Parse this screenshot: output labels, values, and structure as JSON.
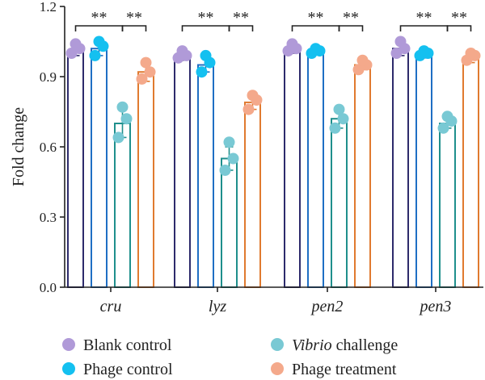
{
  "chart_data": {
    "type": "bar",
    "ylabel": "Fold change",
    "ylim": [
      0,
      1.2
    ],
    "yticks": [
      0.0,
      0.3,
      0.6,
      0.9,
      1.2
    ],
    "categories": [
      "cru",
      "lyz",
      "pen2",
      "pen3"
    ],
    "error_bars": true,
    "series": [
      {
        "name": "Blank control",
        "name_italic": "",
        "name_rest": "Blank control",
        "bar_color": "#2d2a6b",
        "dot_color": "#b09ad8",
        "values": [
          1.01,
          0.99,
          1.02,
          1.02
        ],
        "errors": [
          0.02,
          0.02,
          0.02,
          0.03
        ],
        "points": [
          [
            1.0,
            1.02,
            1.04
          ],
          [
            0.98,
            0.99,
            1.01
          ],
          [
            1.01,
            1.02,
            1.04
          ],
          [
            1.0,
            1.02,
            1.05
          ]
        ]
      },
      {
        "name": "Phage control",
        "name_italic": "",
        "name_rest": "Phage control",
        "bar_color": "#1f6fc4",
        "dot_color": "#14c0f0",
        "values": [
          1.02,
          0.95,
          1.01,
          1.0
        ],
        "errors": [
          0.03,
          0.03,
          0.01,
          0.02
        ],
        "points": [
          [
            0.99,
            1.03,
            1.05
          ],
          [
            0.92,
            0.96,
            0.99
          ],
          [
            1.0,
            1.01,
            1.02
          ],
          [
            0.99,
            1.0,
            1.01
          ]
        ]
      },
      {
        "name": "Vibrio challenge",
        "name_italic": "Vibrio",
        "name_rest": " challenge",
        "bar_color": "#1f8f8c",
        "dot_color": "#79c9d4",
        "values": [
          0.7,
          0.55,
          0.72,
          0.7
        ],
        "errors": [
          0.06,
          0.05,
          0.04,
          0.02
        ],
        "points": [
          [
            0.64,
            0.72,
            0.77
          ],
          [
            0.5,
            0.55,
            0.62
          ],
          [
            0.68,
            0.72,
            0.76
          ],
          [
            0.68,
            0.71,
            0.73
          ]
        ]
      },
      {
        "name": "Phage treatment",
        "name_italic": "",
        "name_rest": "Phage treatment",
        "bar_color": "#e07a2f",
        "dot_color": "#f4a98b",
        "values": [
          0.92,
          0.79,
          0.95,
          0.98
        ],
        "errors": [
          0.04,
          0.03,
          0.02,
          0.02
        ],
        "points": [
          [
            0.89,
            0.92,
            0.96
          ],
          [
            0.76,
            0.8,
            0.82
          ],
          [
            0.93,
            0.95,
            0.97
          ],
          [
            0.97,
            0.99,
            1.0
          ]
        ]
      }
    ],
    "significance": [
      {
        "category": "cru",
        "pairs": [
          {
            "from": 0,
            "to": 2,
            "label": "**"
          },
          {
            "from": 2,
            "to": 3,
            "label": "**"
          }
        ]
      },
      {
        "category": "lyz",
        "pairs": [
          {
            "from": 0,
            "to": 2,
            "label": "**"
          },
          {
            "from": 2,
            "to": 3,
            "label": "**"
          }
        ]
      },
      {
        "category": "pen2",
        "pairs": [
          {
            "from": 0,
            "to": 2,
            "label": "**"
          },
          {
            "from": 2,
            "to": 3,
            "label": "**"
          }
        ]
      },
      {
        "category": "pen3",
        "pairs": [
          {
            "from": 0,
            "to": 2,
            "label": "**"
          },
          {
            "from": 2,
            "to": 3,
            "label": "**"
          }
        ]
      }
    ],
    "legend_position": "bottom"
  }
}
